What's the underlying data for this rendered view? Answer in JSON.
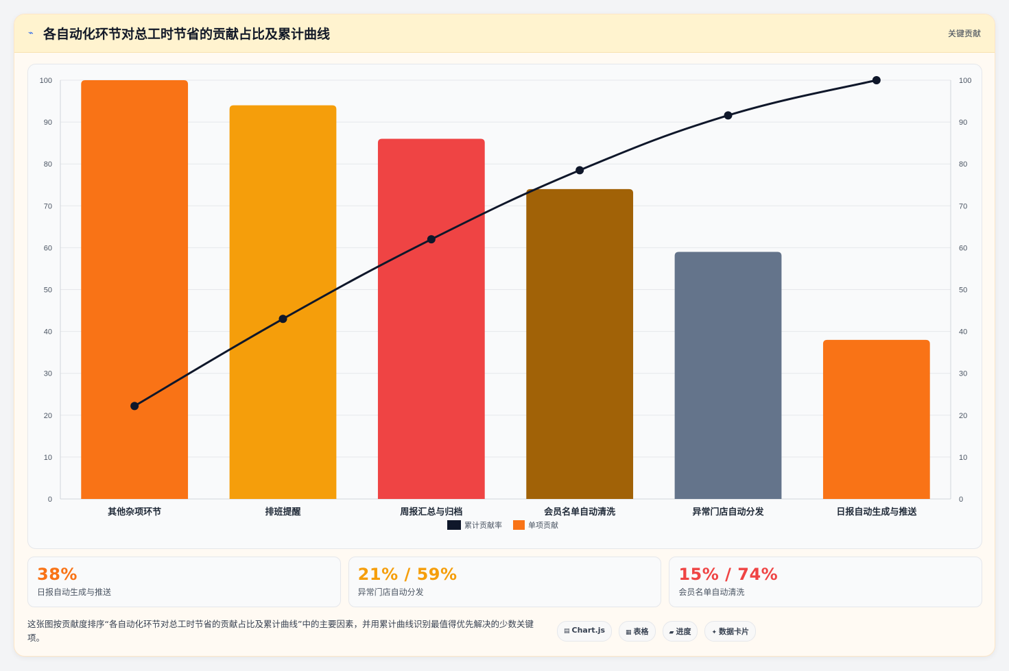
{
  "header": {
    "title": "各自动化环节对总工时节省的贡献占比及累计曲线",
    "badge": "关键贡献"
  },
  "chart_data": {
    "type": "bar",
    "categories": [
      "其他杂项环节",
      "排班提醒",
      "周报汇总与归档",
      "会员名单自动清洗",
      "异常门店自动分发",
      "日报自动生成与推送"
    ],
    "series": [
      {
        "name": "单项贡献",
        "type": "bar",
        "values": [
          100,
          94,
          86,
          74,
          59,
          38
        ],
        "colors": [
          "#f97316",
          "#f59e0b",
          "#ef4444",
          "#a16207",
          "#64748b",
          "#f97316"
        ]
      },
      {
        "name": "累计贡献率",
        "type": "line",
        "values": [
          22.2,
          43,
          62,
          78.5,
          91.6,
          100
        ],
        "color": "#0f172a"
      }
    ],
    "ylim": [
      0,
      100
    ],
    "y2lim": [
      0,
      100
    ],
    "yticks": [
      0,
      10,
      20,
      30,
      40,
      50,
      60,
      70,
      80,
      90,
      100
    ],
    "legend_position": "bottom",
    "grid": true
  },
  "stats": [
    {
      "value": "38%",
      "label": "日报自动生成与推送",
      "color": "#f97316"
    },
    {
      "value": "21% / 59%",
      "label": "异常门店自动分发",
      "color": "#f59e0b"
    },
    {
      "value": "15% / 74%",
      "label": "会员名单自动清洗",
      "color": "#ef4444"
    }
  ],
  "footer": {
    "description": "这张图按贡献度排序“各自动化环节对总工时节省的贡献占比及累计曲线”中的主要因素，并用累计曲线识别最值得优先解决的少数关键项。",
    "tags": [
      {
        "icon": "▤",
        "label": "Chart.js"
      },
      {
        "icon": "▦",
        "label": "表格"
      },
      {
        "icon": "▰",
        "label": "进度"
      },
      {
        "icon": "✦",
        "label": "数据卡片"
      }
    ]
  }
}
